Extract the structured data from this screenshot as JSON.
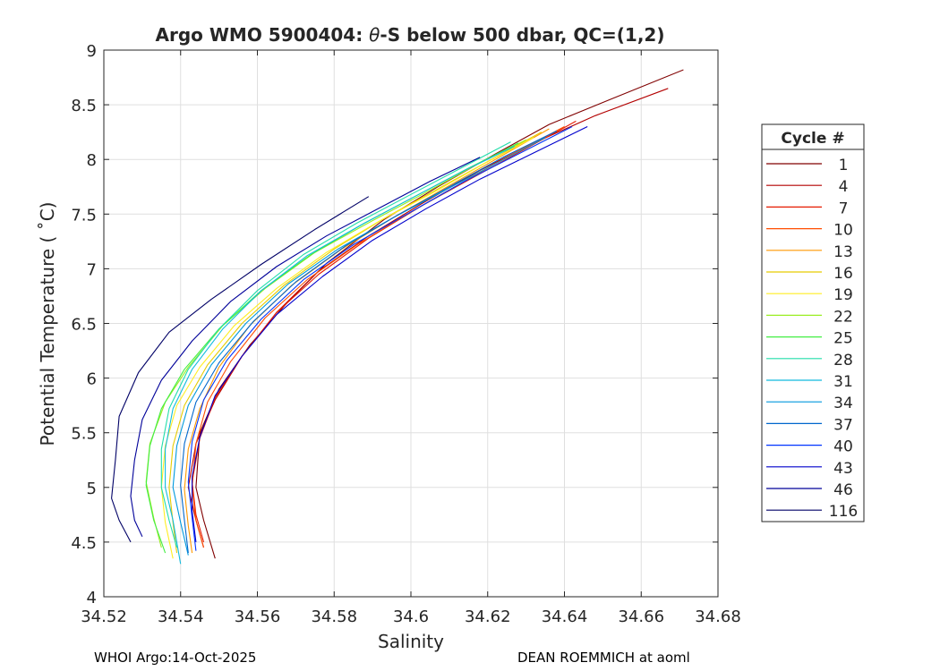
{
  "chart_data": {
    "type": "line",
    "title_prefix": "Argo WMO 5900404: ",
    "title_symbol": "θ",
    "title_suffix": "-S below 500 dbar,  QC=(1,2)",
    "xlabel": "Salinity",
    "ylabel": "Potential Temperature ( ˚C)",
    "xlim": [
      34.52,
      34.68
    ],
    "ylim": [
      4,
      9
    ],
    "xticks": [
      34.52,
      34.54,
      34.56,
      34.58,
      34.6,
      34.62,
      34.64,
      34.66,
      34.68
    ],
    "xtick_labels": [
      "34.52",
      "34.54",
      "34.56",
      "34.58",
      "34.6",
      "34.62",
      "34.64",
      "34.66",
      "34.68"
    ],
    "yticks": [
      4,
      4.5,
      5,
      5.5,
      6,
      6.5,
      7,
      7.5,
      8,
      8.5,
      9
    ],
    "ytick_labels": [
      "4",
      "4.5",
      "5",
      "5.5",
      "6",
      "6.5",
      "7",
      "7.5",
      "8",
      "8.5",
      "9"
    ],
    "grid": true,
    "legend": {
      "title": "Cycle #",
      "placement": "right-outside"
    },
    "series": [
      {
        "name": "1",
        "color": "#800000",
        "points": [
          [
            34.671,
            8.82
          ],
          [
            34.652,
            8.55
          ],
          [
            34.636,
            8.32
          ],
          [
            34.622,
            8.05
          ],
          [
            34.607,
            7.75
          ],
          [
            34.593,
            7.45
          ],
          [
            34.578,
            7.05
          ],
          [
            34.568,
            6.7
          ],
          [
            34.558,
            6.3
          ],
          [
            34.55,
            5.9
          ],
          [
            34.545,
            5.5
          ],
          [
            34.544,
            5.0
          ],
          [
            34.546,
            4.7
          ],
          [
            34.549,
            4.35
          ]
        ]
      },
      {
        "name": "4",
        "color": "#b30000",
        "points": [
          [
            34.667,
            8.65
          ],
          [
            34.648,
            8.4
          ],
          [
            34.632,
            8.15
          ],
          [
            34.618,
            7.9
          ],
          [
            34.603,
            7.6
          ],
          [
            34.589,
            7.3
          ],
          [
            34.576,
            6.98
          ],
          [
            34.565,
            6.6
          ],
          [
            34.556,
            6.2
          ],
          [
            34.549,
            5.8
          ],
          [
            34.544,
            5.4
          ],
          [
            34.542,
            5.0
          ],
          [
            34.544,
            4.7
          ],
          [
            34.546,
            4.45
          ]
        ]
      },
      {
        "name": "7",
        "color": "#e61a00",
        "points": [
          [
            34.643,
            8.35
          ],
          [
            34.63,
            8.1
          ],
          [
            34.617,
            7.85
          ],
          [
            34.603,
            7.58
          ],
          [
            34.589,
            7.28
          ],
          [
            34.576,
            6.95
          ],
          [
            34.565,
            6.6
          ],
          [
            34.556,
            6.2
          ],
          [
            34.549,
            5.82
          ],
          [
            34.545,
            5.45
          ],
          [
            34.543,
            5.05
          ],
          [
            34.544,
            4.75
          ],
          [
            34.546,
            4.5
          ]
        ]
      },
      {
        "name": "10",
        "color": "#ff4d00",
        "points": [
          [
            34.64,
            8.3
          ],
          [
            34.627,
            8.06
          ],
          [
            34.614,
            7.8
          ],
          [
            34.6,
            7.52
          ],
          [
            34.586,
            7.22
          ],
          [
            34.573,
            6.9
          ],
          [
            34.562,
            6.55
          ],
          [
            34.553,
            6.15
          ],
          [
            34.547,
            5.78
          ],
          [
            34.544,
            5.4
          ],
          [
            34.543,
            5.0
          ],
          [
            34.544,
            4.7
          ],
          [
            34.546,
            4.45
          ]
        ]
      },
      {
        "name": "13",
        "color": "#ff9900",
        "points": [
          [
            34.636,
            8.28
          ],
          [
            34.623,
            8.02
          ],
          [
            34.61,
            7.76
          ],
          [
            34.596,
            7.48
          ],
          [
            34.582,
            7.18
          ],
          [
            34.569,
            6.85
          ],
          [
            34.558,
            6.48
          ],
          [
            34.55,
            6.1
          ],
          [
            34.545,
            5.72
          ],
          [
            34.542,
            5.35
          ],
          [
            34.541,
            4.98
          ],
          [
            34.542,
            4.65
          ],
          [
            34.543,
            4.4
          ]
        ]
      },
      {
        "name": "16",
        "color": "#e6cc00",
        "points": [
          [
            34.634,
            8.25
          ],
          [
            34.621,
            8.0
          ],
          [
            34.608,
            7.75
          ],
          [
            34.594,
            7.48
          ],
          [
            34.58,
            7.18
          ],
          [
            34.567,
            6.85
          ],
          [
            34.556,
            6.5
          ],
          [
            34.547,
            6.12
          ],
          [
            34.541,
            5.75
          ],
          [
            34.538,
            5.38
          ],
          [
            34.537,
            5.0
          ],
          [
            34.538,
            4.68
          ],
          [
            34.539,
            4.4
          ]
        ]
      },
      {
        "name": "19",
        "color": "#ffee22",
        "points": [
          [
            34.632,
            8.2
          ],
          [
            34.619,
            7.96
          ],
          [
            34.606,
            7.7
          ],
          [
            34.592,
            7.44
          ],
          [
            34.578,
            7.15
          ],
          [
            34.565,
            6.82
          ],
          [
            34.554,
            6.48
          ],
          [
            34.545,
            6.1
          ],
          [
            34.539,
            5.75
          ],
          [
            34.536,
            5.38
          ],
          [
            34.535,
            5.0
          ],
          [
            34.536,
            4.68
          ],
          [
            34.538,
            4.35
          ]
        ]
      },
      {
        "name": "22",
        "color": "#99ee22",
        "points": [
          [
            34.63,
            8.18
          ],
          [
            34.617,
            7.95
          ],
          [
            34.604,
            7.7
          ],
          [
            34.59,
            7.44
          ],
          [
            34.575,
            7.15
          ],
          [
            34.562,
            6.82
          ],
          [
            34.551,
            6.48
          ],
          [
            34.542,
            6.1
          ],
          [
            34.536,
            5.78
          ],
          [
            34.532,
            5.4
          ],
          [
            34.531,
            5.05
          ],
          [
            34.533,
            4.72
          ],
          [
            34.535,
            4.45
          ]
        ]
      },
      {
        "name": "25",
        "color": "#44ee44",
        "points": [
          [
            34.628,
            8.15
          ],
          [
            34.615,
            7.92
          ],
          [
            34.602,
            7.68
          ],
          [
            34.588,
            7.42
          ],
          [
            34.574,
            7.13
          ],
          [
            34.561,
            6.8
          ],
          [
            34.55,
            6.45
          ],
          [
            34.541,
            6.08
          ],
          [
            34.535,
            5.72
          ],
          [
            34.532,
            5.38
          ],
          [
            34.531,
            5.02
          ],
          [
            34.533,
            4.7
          ],
          [
            34.536,
            4.4
          ]
        ]
      },
      {
        "name": "28",
        "color": "#22ddaa",
        "points": [
          [
            34.626,
            8.16
          ],
          [
            34.613,
            7.92
          ],
          [
            34.6,
            7.68
          ],
          [
            34.586,
            7.42
          ],
          [
            34.572,
            7.13
          ],
          [
            34.56,
            6.8
          ],
          [
            34.55,
            6.45
          ],
          [
            34.542,
            6.08
          ],
          [
            34.537,
            5.72
          ],
          [
            34.535,
            5.35
          ],
          [
            34.535,
            5.0
          ],
          [
            34.537,
            4.7
          ],
          [
            34.539,
            4.45
          ]
        ]
      },
      {
        "name": "31",
        "color": "#11bbdd",
        "points": [
          [
            34.627,
            8.12
          ],
          [
            34.614,
            7.9
          ],
          [
            34.601,
            7.66
          ],
          [
            34.587,
            7.4
          ],
          [
            34.573,
            7.12
          ],
          [
            34.561,
            6.8
          ],
          [
            34.551,
            6.45
          ],
          [
            34.543,
            6.08
          ],
          [
            34.538,
            5.72
          ],
          [
            34.536,
            5.35
          ],
          [
            34.536,
            5.0
          ],
          [
            34.538,
            4.7
          ],
          [
            34.54,
            4.3
          ]
        ]
      },
      {
        "name": "34",
        "color": "#0099dd",
        "points": [
          [
            34.635,
            8.2
          ],
          [
            34.622,
            7.96
          ],
          [
            34.609,
            7.72
          ],
          [
            34.595,
            7.46
          ],
          [
            34.581,
            7.18
          ],
          [
            34.568,
            6.86
          ],
          [
            34.557,
            6.5
          ],
          [
            34.548,
            6.12
          ],
          [
            34.542,
            5.75
          ],
          [
            34.539,
            5.38
          ],
          [
            34.538,
            5.0
          ],
          [
            34.54,
            4.68
          ],
          [
            34.542,
            4.38
          ]
        ]
      },
      {
        "name": "37",
        "color": "#0066cc",
        "points": [
          [
            34.638,
            8.26
          ],
          [
            34.624,
            8.02
          ],
          [
            34.611,
            7.77
          ],
          [
            34.597,
            7.5
          ],
          [
            34.583,
            7.21
          ],
          [
            34.57,
            6.88
          ],
          [
            34.559,
            6.52
          ],
          [
            34.55,
            6.14
          ],
          [
            34.544,
            5.78
          ],
          [
            34.541,
            5.4
          ],
          [
            34.54,
            5.02
          ],
          [
            34.541,
            4.7
          ],
          [
            34.542,
            4.4
          ]
        ]
      },
      {
        "name": "40",
        "color": "#0033ff",
        "points": [
          [
            34.642,
            8.3
          ],
          [
            34.628,
            8.05
          ],
          [
            34.614,
            7.8
          ],
          [
            34.6,
            7.52
          ],
          [
            34.585,
            7.22
          ],
          [
            34.572,
            6.9
          ],
          [
            34.561,
            6.54
          ],
          [
            34.552,
            6.16
          ],
          [
            34.546,
            5.8
          ],
          [
            34.543,
            5.42
          ],
          [
            34.542,
            5.05
          ],
          [
            34.543,
            4.72
          ],
          [
            34.544,
            4.42
          ]
        ]
      },
      {
        "name": "43",
        "color": "#0000cc",
        "points": [
          [
            34.646,
            8.3
          ],
          [
            34.632,
            8.06
          ],
          [
            34.618,
            7.82
          ],
          [
            34.604,
            7.55
          ],
          [
            34.59,
            7.26
          ],
          [
            34.577,
            6.93
          ],
          [
            34.565,
            6.58
          ],
          [
            34.556,
            6.2
          ],
          [
            34.549,
            5.84
          ],
          [
            34.545,
            5.46
          ],
          [
            34.543,
            5.1
          ],
          [
            34.543,
            4.78
          ],
          [
            34.544,
            4.5
          ]
        ]
      },
      {
        "name": "46",
        "color": "#000099",
        "points": [
          [
            34.618,
            8.02
          ],
          [
            34.605,
            7.8
          ],
          [
            34.592,
            7.56
          ],
          [
            34.578,
            7.3
          ],
          [
            34.565,
            7.02
          ],
          [
            34.553,
            6.7
          ],
          [
            34.543,
            6.34
          ],
          [
            34.535,
            5.98
          ],
          [
            34.53,
            5.62
          ],
          [
            34.528,
            5.25
          ],
          [
            34.527,
            4.92
          ],
          [
            34.528,
            4.7
          ],
          [
            34.53,
            4.55
          ]
        ]
      },
      {
        "name": "116",
        "color": "#000066",
        "points": [
          [
            34.589,
            7.66
          ],
          [
            34.575,
            7.36
          ],
          [
            34.561,
            7.04
          ],
          [
            34.548,
            6.72
          ],
          [
            34.537,
            6.42
          ],
          [
            34.529,
            6.05
          ],
          [
            34.524,
            5.65
          ],
          [
            34.523,
            5.25
          ],
          [
            34.522,
            4.9
          ],
          [
            34.524,
            4.7
          ],
          [
            34.527,
            4.5
          ]
        ]
      }
    ]
  },
  "footer": {
    "left": "WHOI Argo:14-Oct-2025",
    "right": "DEAN ROEMMICH at aoml"
  }
}
